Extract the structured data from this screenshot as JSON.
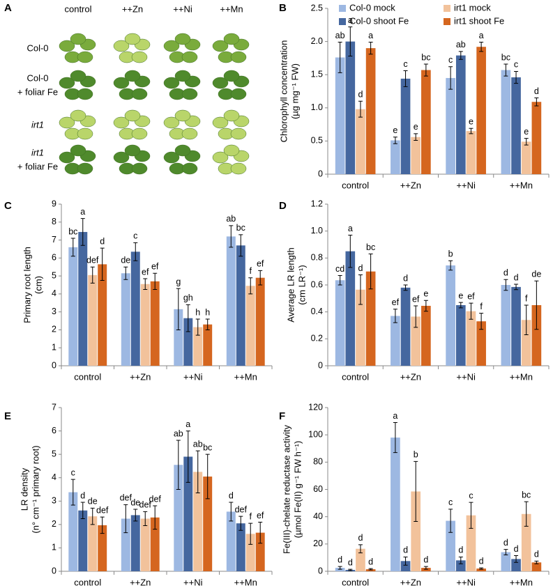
{
  "panel_a": {
    "panel": "A",
    "columns": [
      "control",
      "++Zn",
      "++Ni",
      "++Mn"
    ],
    "rows": [
      [
        "Col-0"
      ],
      [
        "Col-0",
        "+ foliar Fe"
      ],
      [
        "irt1"
      ],
      [
        "irt1",
        "+ foliar Fe"
      ]
    ]
  },
  "chart_data": [
    {
      "type": "bar",
      "panel": "B",
      "ylabel": [
        "Chlorophyll concentration",
        "(µg mg⁻¹ FW)"
      ],
      "categories": [
        "control",
        "++Zn",
        "++Ni",
        "++Mn"
      ],
      "legend": true,
      "ylim": [
        0,
        2.5
      ],
      "yticks": [
        0,
        0.5,
        {
          "value": 1,
          "label": "1.0"
        },
        1.5,
        {
          "value": 2,
          "label": "2.0"
        },
        2.5
      ],
      "series": [
        {
          "name": "Col-0 mock",
          "color": "#9db8e2",
          "values": [
            1.76,
            0.51,
            1.45,
            1.57
          ],
          "errors": [
            0.23,
            0.05,
            0.17,
            0.09
          ],
          "labels": [
            "ab",
            "e",
            "c",
            "bc"
          ]
        },
        {
          "name": "Col-0 shoot Fe",
          "color": "#45679f",
          "values": [
            2.0,
            1.44,
            1.79,
            1.46
          ],
          "errors": [
            0.22,
            0.12,
            0.06,
            0.09
          ],
          "labels": [
            "a",
            "c",
            "ab",
            "c"
          ]
        },
        {
          "name": "irt1 mock",
          "color": "#f2c29b",
          "values": [
            0.98,
            0.56,
            0.65,
            0.49
          ],
          "errors": [
            0.12,
            0.05,
            0.04,
            0.05
          ],
          "labels": [
            "d",
            "e",
            "e",
            "e"
          ]
        },
        {
          "name": "irt1 shoot Fe",
          "color": "#d5661f",
          "values": [
            1.9,
            1.57,
            1.92,
            1.09
          ],
          "errors": [
            0.09,
            0.09,
            0.07,
            0.06
          ],
          "labels": [
            "a",
            "bc",
            "a",
            "d"
          ]
        }
      ]
    },
    {
      "type": "bar",
      "panel": "C",
      "ylabel": [
        "Primary root length",
        "(cm)"
      ],
      "categories": [
        "control",
        "++Zn",
        "++Ni",
        "++Mn"
      ],
      "legend": false,
      "ylim": [
        0,
        9
      ],
      "yticks": [
        0,
        1,
        2,
        3,
        4,
        5,
        6,
        7,
        8,
        9
      ],
      "series": [
        {
          "name": "Col-0 mock",
          "color": "#9db8e2",
          "values": [
            6.6,
            5.15,
            3.15,
            7.2
          ],
          "errors": [
            0.5,
            0.35,
            1.15,
            0.6
          ],
          "labels": [
            "bc",
            "de",
            "g",
            "ab"
          ]
        },
        {
          "name": "Col-0 shoot Fe",
          "color": "#45679f",
          "values": [
            7.45,
            6.35,
            2.65,
            6.7
          ],
          "errors": [
            0.75,
            0.5,
            0.75,
            0.6
          ],
          "labels": [
            "a",
            "c",
            "gh",
            "bc"
          ]
        },
        {
          "name": "irt1 mock",
          "color": "#f2c29b",
          "values": [
            5.05,
            4.55,
            2.15,
            4.45
          ],
          "errors": [
            0.45,
            0.3,
            0.45,
            0.45
          ],
          "labels": [
            "def",
            "ef",
            "h",
            "f"
          ]
        },
        {
          "name": "irt1 shoot Fe",
          "color": "#d5661f",
          "values": [
            5.65,
            4.7,
            2.3,
            4.9
          ],
          "errors": [
            0.9,
            0.45,
            0.3,
            0.4
          ],
          "labels": [
            "d",
            "ef",
            "h",
            "ef"
          ]
        }
      ]
    },
    {
      "type": "bar",
      "panel": "D",
      "ylabel": [
        "Average LR length",
        "(cm LR⁻¹)"
      ],
      "categories": [
        "control",
        "++Zn",
        "++Ni",
        "++Mn"
      ],
      "legend": false,
      "ylim": [
        0,
        1.2
      ],
      "yticks": [
        0,
        0.2,
        0.4,
        0.6,
        0.8,
        {
          "value": 1,
          "label": "1.0"
        },
        1.2
      ],
      "series": [
        {
          "name": "Col-0 mock",
          "color": "#9db8e2",
          "values": [
            0.635,
            0.37,
            0.745,
            0.6
          ],
          "errors": [
            0.035,
            0.05,
            0.035,
            0.04
          ],
          "labels": [
            "cd",
            "ef",
            "b",
            "d"
          ]
        },
        {
          "name": "Col-0 shoot Fe",
          "color": "#45679f",
          "values": [
            0.85,
            0.58,
            0.45,
            0.585
          ],
          "errors": [
            0.12,
            0.02,
            0.02,
            0.02
          ],
          "labels": [
            "a",
            "d",
            "e",
            "d"
          ]
        },
        {
          "name": "irt1 mock",
          "color": "#f2c29b",
          "values": [
            0.565,
            0.365,
            0.405,
            0.34
          ],
          "errors": [
            0.11,
            0.08,
            0.06,
            0.11
          ],
          "labels": [
            "d",
            "ef",
            "ef",
            "f"
          ]
        },
        {
          "name": "irt1 shoot Fe",
          "color": "#d5661f",
          "values": [
            0.7,
            0.445,
            0.33,
            0.45
          ],
          "errors": [
            0.13,
            0.04,
            0.06,
            0.18
          ],
          "labels": [
            "bc",
            "e",
            "f",
            "de"
          ]
        }
      ]
    },
    {
      "type": "bar",
      "panel": "E",
      "ylabel": [
        "LR density",
        "(n° cm⁻¹ primary root)"
      ],
      "categories": [
        "control",
        "++Zn",
        "++Ni",
        "++Mn"
      ],
      "legend": false,
      "ylim": [
        0,
        7
      ],
      "yticks": [
        0,
        1,
        2,
        3,
        4,
        5,
        6,
        7
      ],
      "series": [
        {
          "name": "Col-0 mock",
          "color": "#9db8e2",
          "values": [
            3.38,
            2.25,
            4.55,
            2.55
          ],
          "errors": [
            0.55,
            0.6,
            1.05,
            0.4
          ],
          "labels": [
            "c",
            "def",
            "ab",
            "d"
          ]
        },
        {
          "name": "Col-0 shoot Fe",
          "color": "#45679f",
          "values": [
            2.6,
            2.4,
            4.9,
            2.05
          ],
          "errors": [
            0.35,
            0.25,
            1.1,
            0.3
          ],
          "labels": [
            "d",
            "de",
            "a",
            "def"
          ]
        },
        {
          "name": "irt1 mock",
          "color": "#f2c29b",
          "values": [
            2.35,
            2.25,
            4.25,
            1.6
          ],
          "errors": [
            0.35,
            0.3,
            0.9,
            0.45
          ],
          "labels": [
            "de",
            "def",
            "ab",
            "f"
          ]
        },
        {
          "name": "irt1 shoot Fe",
          "color": "#d5661f",
          "values": [
            1.97,
            2.3,
            4.05,
            1.65
          ],
          "errors": [
            0.35,
            0.5,
            0.95,
            0.45
          ],
          "labels": [
            "def",
            "def",
            "bc",
            "ef"
          ]
        }
      ]
    },
    {
      "type": "bar",
      "panel": "F",
      "ylabel": [
        "Fe(III)-chelate reductase activity",
        "(µmol Fe(II) g⁻¹ FW h⁻¹)"
      ],
      "categories": [
        "control",
        "++Zn",
        "++Ni",
        "++Mn"
      ],
      "legend": false,
      "ylim": [
        0,
        120
      ],
      "yticks": [
        0,
        20,
        40,
        60,
        80,
        100,
        120
      ],
      "series": [
        {
          "name": "Col-0 mock",
          "color": "#9db8e2",
          "values": [
            2.5,
            98,
            37,
            14
          ],
          "errors": [
            1,
            11,
            8.5,
            2
          ],
          "labels": [
            "d",
            "a",
            "c",
            "d"
          ]
        },
        {
          "name": "Col-0 shoot Fe",
          "color": "#45679f",
          "values": [
            1,
            7.5,
            8,
            9
          ],
          "errors": [
            0.5,
            3,
            2.5,
            2.5
          ],
          "labels": [
            "d",
            "d",
            "d",
            "d"
          ]
        },
        {
          "name": "irt1 mock",
          "color": "#f2c29b",
          "values": [
            16.5,
            58.5,
            41,
            42
          ],
          "errors": [
            3,
            22,
            9.5,
            9
          ],
          "labels": [
            "d",
            "b",
            "c",
            "bc"
          ]
        },
        {
          "name": "irt1 shoot Fe",
          "color": "#d5661f",
          "values": [
            1.5,
            2.5,
            2,
            6.5
          ],
          "errors": [
            0.5,
            1,
            0.5,
            1
          ],
          "labels": [
            "d",
            "d",
            "d",
            "d"
          ]
        }
      ]
    }
  ]
}
